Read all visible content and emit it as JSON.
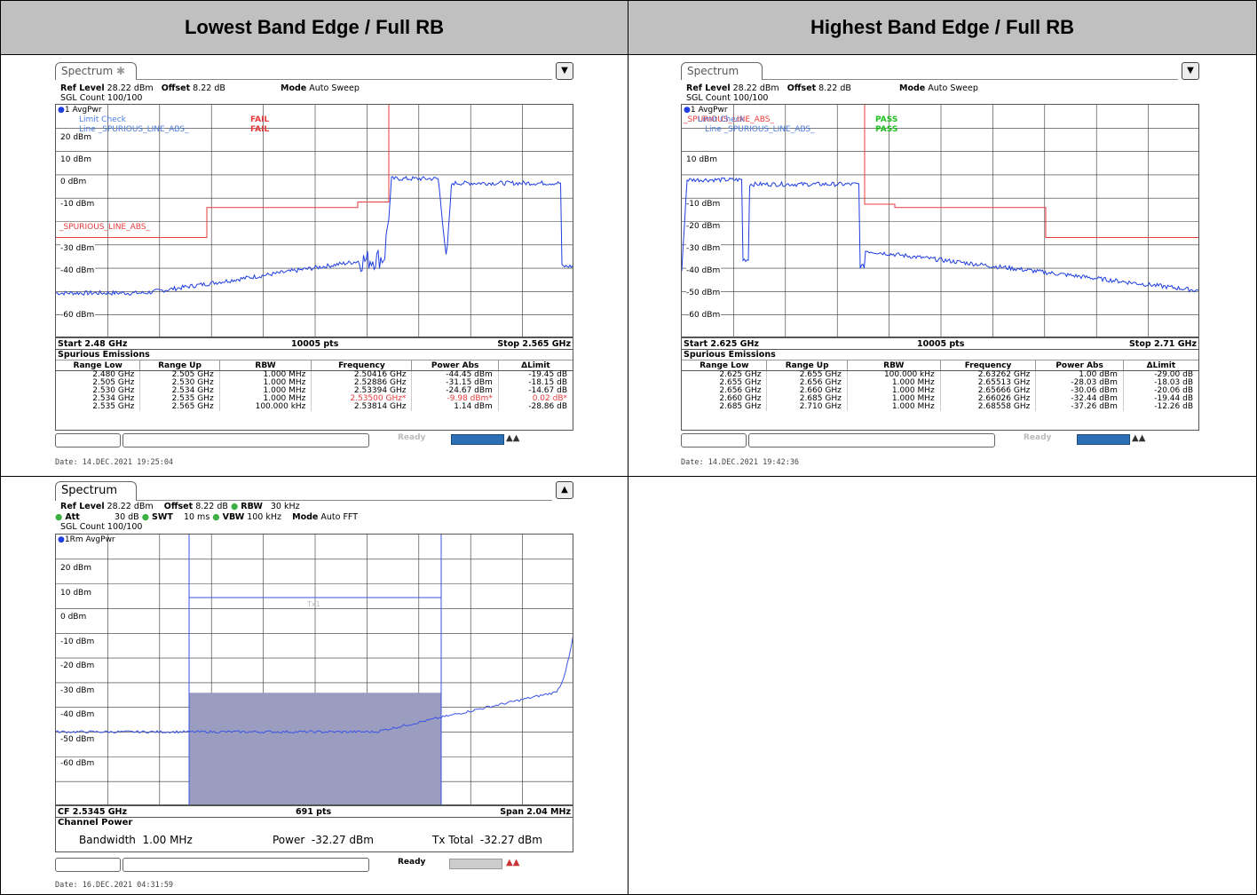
{
  "headers": {
    "lowest": "Lowest Band Edge / Full RB",
    "highest": "Highest Band Edge / Full RB"
  },
  "common": {
    "tab_label": "Spectrum",
    "ref_level_label": "Ref Level",
    "ref_level_value": "28.22 dBm",
    "offset_label": "Offset",
    "offset_value": "8.22 dB",
    "mode_label": "Mode",
    "sgl_count": "SGL Count 100/100",
    "spur_title": "Spurious Emissions",
    "spur_columns": [
      "Range Low",
      "Range Up",
      "RBW",
      "Frequency",
      "Power Abs",
      "ΔLimit"
    ],
    "pts": "10005 pts",
    "y_ticks": [
      "20 dBm",
      "10 dBm",
      "0 dBm",
      "-10 dBm",
      "-20 dBm",
      "-30 dBm",
      "-40 dBm",
      "-50 dBm",
      "-60 dBm"
    ]
  },
  "panel1": {
    "mode_value": "Auto Sweep",
    "trace": "1 AvgPwr",
    "limit_check": "Limit Check",
    "limit_line": "Line _SPURIOUS_LINE_ABS_",
    "result1": "FAIL",
    "result2": "FAIL",
    "line_label": "_SPURIOUS_LINE_ABS_",
    "start": "Start 2.48 GHz",
    "stop": "Stop 2.565 GHz",
    "rows": [
      [
        "2.480 GHz",
        "2.505 GHz",
        "1.000 MHz",
        "2.50416 GHz",
        "-44.45 dBm",
        "-19.45 dB"
      ],
      [
        "2.505 GHz",
        "2.530 GHz",
        "1.000 MHz",
        "2.52886 GHz",
        "-31.15 dBm",
        "-18.15 dB"
      ],
      [
        "2.530 GHz",
        "2.534 GHz",
        "1.000 MHz",
        "2.53394 GHz",
        "-24.67 dBm",
        "-14.67 dB"
      ],
      [
        "2.534 GHz",
        "2.535 GHz",
        "1.000 MHz",
        "2.53500 GHz*",
        "-9.98 dBm*",
        "0.02 dB*"
      ],
      [
        "2.535 GHz",
        "2.565 GHz",
        "100.000 kHz",
        "2.53814 GHz",
        "1.14 dBm",
        "-28.86 dB"
      ]
    ],
    "date": "Date: 14.DEC.2021  19:25:04"
  },
  "panel2": {
    "mode_value": "Auto Sweep",
    "trace": "1 AvgPwr",
    "limit_check": "Limit Check",
    "limit_line": "Line _SPURIOUS_LINE_ABS_",
    "line_label": "_SPURIOUS_LINE_ABS_",
    "result1": "PASS",
    "result2": "PASS",
    "start": "Start 2.625 GHz",
    "stop": "Stop 2.71 GHz",
    "rows": [
      [
        "2.625 GHz",
        "2.655 GHz",
        "100.000 kHz",
        "2.63262 GHz",
        "1.00 dBm",
        "-29.00 dB"
      ],
      [
        "2.655 GHz",
        "2.656 GHz",
        "1.000 MHz",
        "2.65513 GHz",
        "-28.03 dBm",
        "-18.03 dB"
      ],
      [
        "2.656 GHz",
        "2.660 GHz",
        "1.000 MHz",
        "2.65666 GHz",
        "-30.06 dBm",
        "-20.06 dB"
      ],
      [
        "2.660 GHz",
        "2.685 GHz",
        "1.000 MHz",
        "2.66026 GHz",
        "-32.44 dBm",
        "-19.44 dB"
      ],
      [
        "2.685 GHz",
        "2.710 GHz",
        "1.000 MHz",
        "2.68558 GHz",
        "-37.26 dBm",
        "-12.26 dB"
      ]
    ],
    "date": "Date: 14.DEC.2021  19:42:36"
  },
  "panel3": {
    "rbw_label": "RBW",
    "rbw_value": "30 kHz",
    "att_label": "Att",
    "att_value": "30 dB",
    "swt_label": "SWT",
    "swt_value": "10 ms",
    "vbw_label": "VBW",
    "vbw_value": "100 kHz",
    "mode_value": "Auto FFT",
    "trace": "1Rm AvgPwr",
    "marker_label": "Tx1",
    "cf": "CF 2.5345 GHz",
    "pts": "691 pts",
    "span": "Span 2.04 MHz",
    "cp_title": "Channel Power",
    "bandwidth_label": "Bandwidth",
    "bandwidth_value": "1.00 MHz",
    "power_label": "Power",
    "power_value": "-32.27 dBm",
    "txtotal_label": "Tx Total",
    "txtotal_value": "-32.27 dBm",
    "status": "Ready",
    "date": "Date: 16.DEC.2021  04:31:59"
  },
  "colors": {
    "trace": "#1f3fe0",
    "limit": "#e83c3c",
    "pass": "#22c022",
    "fail": "#e83c3c",
    "fill": "#9a9cc0"
  }
}
